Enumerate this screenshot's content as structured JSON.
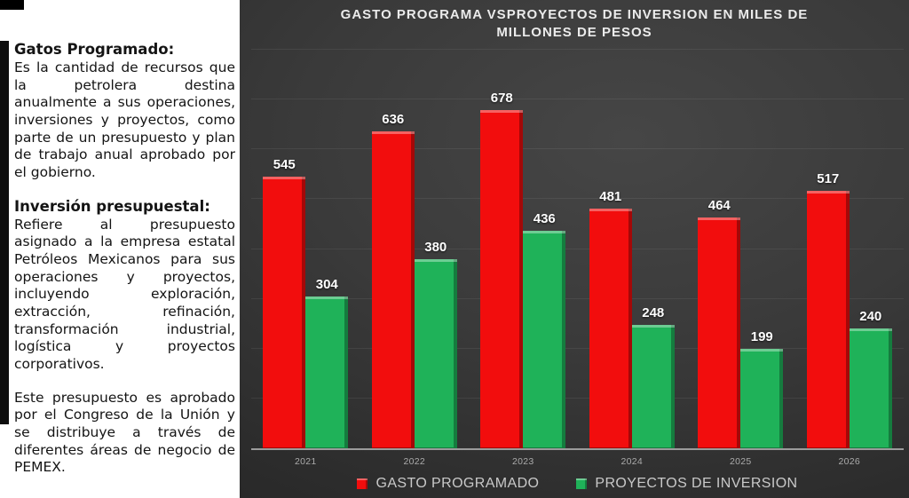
{
  "left_panel": {
    "sections": [
      {
        "heading": "Gatos Programado:",
        "body": "Es la cantidad de recursos que la petrolera destina anualmente a sus operaciones, inversiones y proyectos, como parte de un presupuesto y plan de trabajo anual aprobado por el gobierno."
      },
      {
        "heading": "Inversión presupuestal:",
        "body": "Refiere al presupuesto asignado a la empresa estatal Petróleos Mexicanos para sus operaciones y proyectos, incluyendo exploración, extracción, refinación, transformación industrial, logística y proyectos corporativos."
      },
      {
        "heading": "",
        "body": "Este presupuesto es aprobado por el Congreso de la Unión y se distribuye a través de diferentes áreas de negocio de PEMEX."
      }
    ]
  },
  "chart": {
    "title_line1": "GASTO PROGRAMA VSPROYECTOS DE INVERSION EN MILES DE",
    "title_line2": "MILLONES DE PESOS"
  },
  "chart_data": {
    "type": "bar",
    "title": "GASTO PROGRAMA VSPROYECTOS DE INVERSION EN MILES DE MILLONES DE PESOS",
    "categories": [
      "2021",
      "2022",
      "2023",
      "2024",
      "2025",
      "2026"
    ],
    "series": [
      {
        "name": "GASTO PROGRAMADO",
        "color": "#F20D0D",
        "values": [
          545,
          636,
          678,
          481,
          464,
          517
        ]
      },
      {
        "name": "PROYECTOS DE INVERSION",
        "color": "#1FB259",
        "values": [
          304,
          380,
          436,
          248,
          199,
          240
        ]
      }
    ],
    "xlabel": "",
    "ylabel": "",
    "ylim": [
      0,
      800
    ],
    "gridline_step": 100,
    "grid": true,
    "legend_position": "bottom",
    "value_labels": true
  }
}
